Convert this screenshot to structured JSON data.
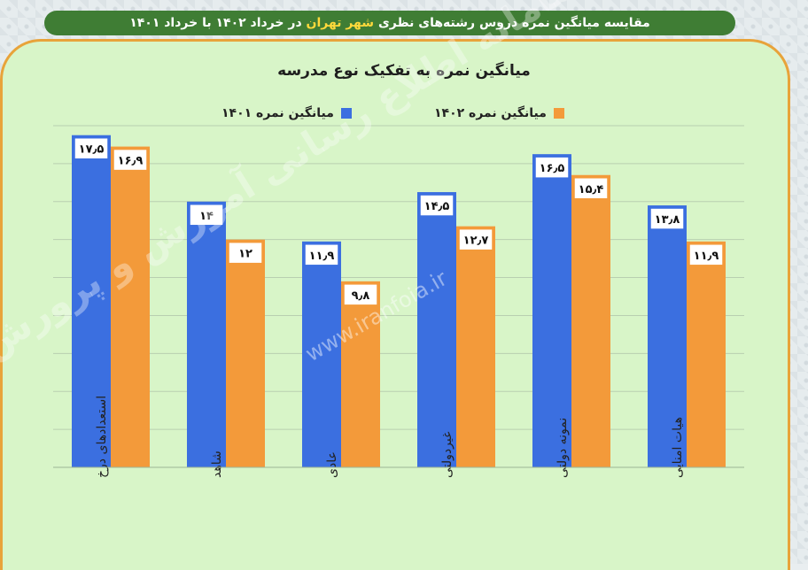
{
  "page_title": {
    "before": "مقایسه میانگین نمره دروس رشته‌های نظری ",
    "highlight": "شهر تهران",
    "after": " در خرداد ۱۴۰۲ با خرداد ۱۴۰۱"
  },
  "watermark": {
    "text": "سامانه اطلاع رسانی آموزش و پرورش",
    "url": "www.iranfoia.ir"
  },
  "colors": {
    "series_1401": "#3b6fe0",
    "series_1402": "#f39a3a",
    "label_border_1401": "#3b6fe0",
    "label_border_1402": "#f39a3a"
  },
  "chart_data": {
    "type": "bar",
    "title": "میانگین نمره به تفکیک نوع مدرسه",
    "categories": [
      "استعدادهای درخشان",
      "شاهد",
      "عادی",
      "غیردولتی",
      "نمونه دولتی",
      "هیأت امنایی"
    ],
    "category_labels_shown": [
      "استعدادهای درخ",
      "شاهد",
      "عادی",
      "غیردولتی",
      "نمونه دولتی",
      "هیات امنایی"
    ],
    "series": [
      {
        "name": "میانگین نمره ۱۴۰۱",
        "values": [
          17.5,
          14,
          11.9,
          14.5,
          16.5,
          13.8
        ],
        "value_labels": [
          "۱۷٫۵",
          "۱۴",
          "۱۱٫۹",
          "۱۴٫۵",
          "۱۶٫۵",
          "۱۳٫۸"
        ]
      },
      {
        "name": "میانگین نمره ۱۴۰۲",
        "values": [
          16.9,
          12,
          9.8,
          12.7,
          15.4,
          11.9
        ],
        "value_labels": [
          "۱۶٫۹",
          "۱۲",
          "۹٫۸",
          "۱۲٫۷",
          "۱۵٫۴",
          "۱۱٫۹"
        ]
      }
    ],
    "ylim": [
      0,
      18
    ],
    "grid": true,
    "legend": "top"
  }
}
